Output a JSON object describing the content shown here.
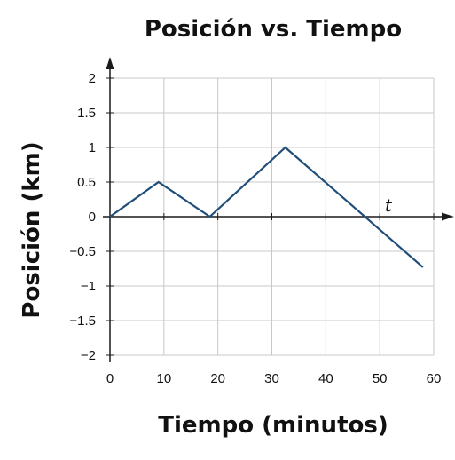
{
  "chart_data": {
    "type": "line",
    "title": "Posición vs. Tiempo",
    "xlabel": "Tiempo (minutos)",
    "ylabel": "Posición (km)",
    "axis_variable_label": "t",
    "xlim": [
      0,
      60
    ],
    "ylim": [
      -2,
      2
    ],
    "xticks": [
      0,
      10,
      20,
      30,
      40,
      50,
      60
    ],
    "yticks": [
      2,
      1.5,
      1,
      0.5,
      0,
      -0.5,
      -1,
      -1.5,
      -2
    ],
    "xtick_labels": [
      "0",
      "10",
      "20",
      "30",
      "40",
      "50",
      "60"
    ],
    "ytick_labels": [
      "2",
      "1.5",
      "1",
      "0.5",
      "0",
      "−0.5",
      "−1",
      "−1.5",
      "−2"
    ],
    "grid": true,
    "series": [
      {
        "x": [
          0,
          9,
          18.5,
          32.5,
          58
        ],
        "y": [
          0,
          0.5,
          0,
          1,
          -0.73
        ],
        "color": "#1f4e79"
      }
    ]
  }
}
